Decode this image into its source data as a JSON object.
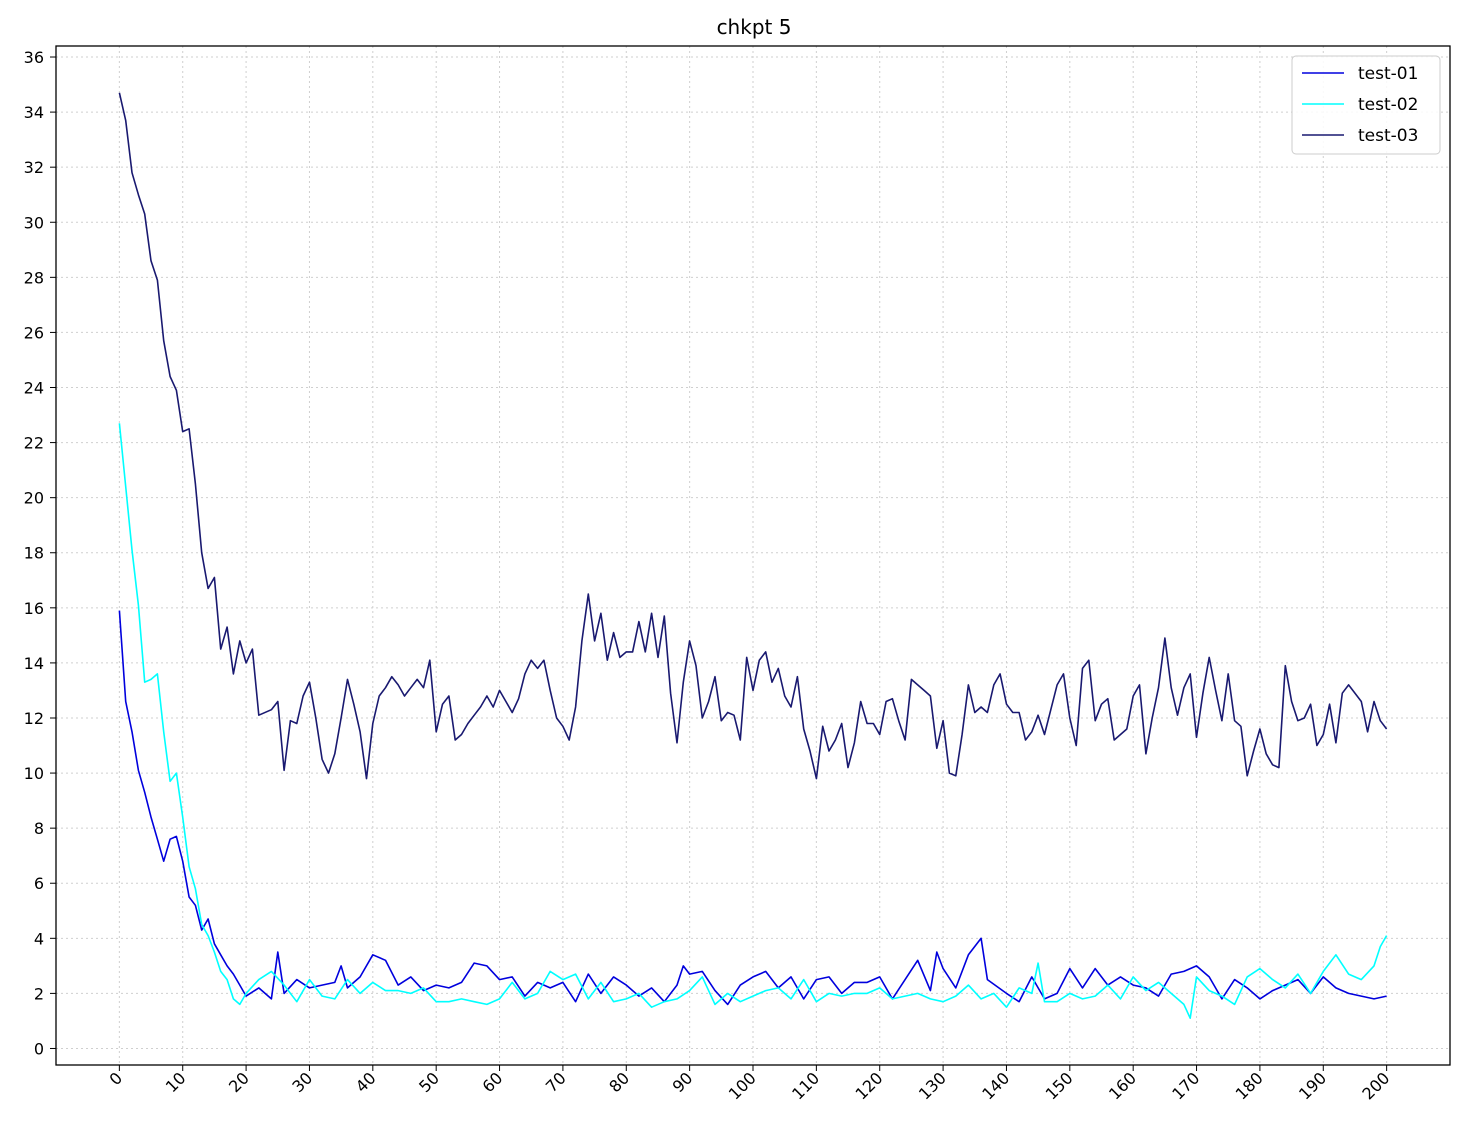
{
  "chart_data": {
    "type": "line",
    "title": "chkpt 5",
    "xlabel": "",
    "ylabel": "",
    "xlim": [
      -10,
      210
    ],
    "ylim": [
      -0.6,
      36.4
    ],
    "xticks": [
      0,
      10,
      20,
      30,
      40,
      50,
      60,
      70,
      80,
      90,
      100,
      110,
      120,
      130,
      140,
      150,
      160,
      170,
      180,
      190,
      200
    ],
    "yticks": [
      0,
      2,
      4,
      6,
      8,
      10,
      12,
      14,
      16,
      18,
      20,
      22,
      24,
      26,
      28,
      30,
      32,
      34,
      36
    ],
    "grid": true,
    "legend_position": "top-right",
    "series": [
      {
        "name": "test-01",
        "color": "#0000dd",
        "x": [
          0,
          1,
          2,
          3,
          4,
          5,
          6,
          7,
          8,
          9,
          10,
          11,
          12,
          13,
          14,
          15,
          16,
          17,
          18,
          19,
          20,
          22,
          24,
          25,
          26,
          28,
          30,
          32,
          34,
          35,
          36,
          38,
          40,
          42,
          44,
          46,
          48,
          50,
          52,
          54,
          56,
          58,
          60,
          62,
          64,
          66,
          68,
          70,
          72,
          74,
          76,
          78,
          80,
          82,
          84,
          86,
          88,
          89,
          90,
          92,
          94,
          96,
          98,
          100,
          102,
          104,
          106,
          108,
          110,
          112,
          114,
          116,
          118,
          120,
          122,
          124,
          126,
          128,
          129,
          130,
          132,
          134,
          136,
          137,
          140,
          142,
          144,
          146,
          148,
          150,
          152,
          154,
          156,
          158,
          160,
          162,
          164,
          166,
          168,
          170,
          172,
          174,
          176,
          178,
          180,
          182,
          184,
          186,
          188,
          190,
          192,
          194,
          196,
          198,
          200
        ],
        "values": [
          15.9,
          12.6,
          11.5,
          10.1,
          9.3,
          8.4,
          7.6,
          6.8,
          7.6,
          7.7,
          6.8,
          5.5,
          5.2,
          4.3,
          4.7,
          3.8,
          3.4,
          3.0,
          2.7,
          2.3,
          1.9,
          2.2,
          1.8,
          3.5,
          2.0,
          2.5,
          2.2,
          2.3,
          2.4,
          3.0,
          2.2,
          2.6,
          3.4,
          3.2,
          2.3,
          2.6,
          2.1,
          2.3,
          2.2,
          2.4,
          3.1,
          3.0,
          2.5,
          2.6,
          1.9,
          2.4,
          2.2,
          2.4,
          1.7,
          2.7,
          2.0,
          2.6,
          2.3,
          1.9,
          2.2,
          1.7,
          2.3,
          3.0,
          2.7,
          2.8,
          2.1,
          1.6,
          2.3,
          2.6,
          2.8,
          2.2,
          2.6,
          1.8,
          2.5,
          2.6,
          2.0,
          2.4,
          2.4,
          2.6,
          1.8,
          2.5,
          3.2,
          2.1,
          3.5,
          2.9,
          2.2,
          3.4,
          4.0,
          2.5,
          2.0,
          1.7,
          2.6,
          1.8,
          2.0,
          2.9,
          2.2,
          2.9,
          2.3,
          2.6,
          2.3,
          2.2,
          1.9,
          2.7,
          2.8,
          3.0,
          2.6,
          1.8,
          2.5,
          2.2,
          1.8,
          2.1,
          2.3,
          2.5,
          2.0,
          2.6,
          2.2,
          2.0,
          1.9,
          1.8,
          1.9
        ]
      },
      {
        "name": "test-02",
        "color": "#00ffff",
        "x": [
          0,
          1,
          2,
          3,
          4,
          5,
          6,
          7,
          8,
          9,
          10,
          11,
          12,
          13,
          14,
          15,
          16,
          17,
          18,
          19,
          20,
          22,
          24,
          26,
          28,
          30,
          32,
          34,
          36,
          38,
          40,
          42,
          44,
          46,
          48,
          50,
          52,
          54,
          56,
          58,
          60,
          62,
          64,
          66,
          68,
          70,
          72,
          74,
          76,
          78,
          80,
          82,
          84,
          86,
          88,
          90,
          92,
          94,
          96,
          98,
          100,
          102,
          104,
          106,
          108,
          110,
          112,
          114,
          116,
          118,
          120,
          122,
          124,
          126,
          128,
          130,
          132,
          134,
          136,
          138,
          140,
          142,
          144,
          145,
          146,
          148,
          150,
          152,
          154,
          156,
          158,
          160,
          162,
          164,
          166,
          168,
          169,
          170,
          172,
          174,
          176,
          178,
          180,
          182,
          184,
          186,
          188,
          190,
          192,
          194,
          196,
          198,
          199,
          200
        ],
        "values": [
          22.7,
          20.4,
          18.1,
          16.1,
          13.3,
          13.4,
          13.6,
          11.5,
          9.7,
          10.0,
          8.4,
          6.6,
          5.8,
          4.5,
          4.1,
          3.5,
          2.8,
          2.5,
          1.8,
          1.6,
          2.0,
          2.5,
          2.8,
          2.3,
          1.7,
          2.5,
          1.9,
          1.8,
          2.5,
          2.0,
          2.4,
          2.1,
          2.1,
          2.0,
          2.2,
          1.7,
          1.7,
          1.8,
          1.7,
          1.6,
          1.8,
          2.4,
          1.8,
          2.0,
          2.8,
          2.5,
          2.7,
          1.8,
          2.4,
          1.7,
          1.8,
          2.0,
          1.5,
          1.7,
          1.8,
          2.1,
          2.6,
          1.6,
          2.0,
          1.7,
          1.9,
          2.1,
          2.2,
          1.8,
          2.5,
          1.7,
          2.0,
          1.9,
          2.0,
          2.0,
          2.2,
          1.8,
          1.9,
          2.0,
          1.8,
          1.7,
          1.9,
          2.3,
          1.8,
          2.0,
          1.5,
          2.2,
          2.0,
          3.1,
          1.7,
          1.7,
          2.0,
          1.8,
          1.9,
          2.3,
          1.8,
          2.6,
          2.1,
          2.4,
          2.0,
          1.6,
          1.1,
          2.6,
          2.1,
          1.9,
          1.6,
          2.6,
          2.9,
          2.5,
          2.2,
          2.7,
          2.0,
          2.8,
          3.4,
          2.7,
          2.5,
          3.0,
          3.7,
          4.1
        ]
      },
      {
        "name": "test-03",
        "color": "#191970",
        "x": [
          0,
          1,
          2,
          3,
          4,
          5,
          6,
          7,
          8,
          9,
          10,
          11,
          12,
          13,
          14,
          15,
          16,
          17,
          18,
          19,
          20,
          21,
          22,
          24,
          25,
          26,
          27,
          28,
          29,
          30,
          31,
          32,
          33,
          34,
          35,
          36,
          37,
          38,
          39,
          40,
          41,
          42,
          43,
          44,
          45,
          46,
          47,
          48,
          49,
          50,
          51,
          52,
          53,
          54,
          55,
          56,
          57,
          58,
          59,
          60,
          61,
          62,
          63,
          64,
          65,
          66,
          67,
          68,
          69,
          70,
          71,
          72,
          73,
          74,
          75,
          76,
          77,
          78,
          79,
          80,
          81,
          82,
          83,
          84,
          85,
          86,
          87,
          88,
          89,
          90,
          91,
          92,
          93,
          94,
          95,
          96,
          97,
          98,
          99,
          100,
          101,
          102,
          103,
          104,
          105,
          106,
          107,
          108,
          109,
          110,
          111,
          112,
          113,
          114,
          115,
          116,
          117,
          118,
          119,
          120,
          121,
          122,
          123,
          124,
          125,
          126,
          127,
          128,
          129,
          130,
          131,
          132,
          133,
          134,
          135,
          136,
          137,
          138,
          139,
          140,
          141,
          142,
          143,
          144,
          145,
          146,
          147,
          148,
          149,
          150,
          151,
          152,
          153,
          154,
          155,
          156,
          157,
          158,
          159,
          160,
          161,
          162,
          163,
          164,
          165,
          166,
          167,
          168,
          169,
          170,
          171,
          172,
          173,
          174,
          175,
          176,
          177,
          178,
          179,
          180,
          181,
          182,
          183,
          184,
          185,
          186,
          187,
          188,
          189,
          190,
          191,
          192,
          193,
          194,
          195,
          196,
          197,
          198,
          199,
          200
        ],
        "values": [
          34.7,
          33.7,
          31.8,
          31.0,
          30.3,
          28.6,
          27.9,
          25.7,
          24.4,
          23.9,
          22.4,
          22.5,
          20.5,
          18.0,
          16.7,
          17.1,
          14.5,
          15.3,
          13.6,
          14.8,
          14.0,
          14.5,
          12.1,
          12.3,
          12.6,
          10.1,
          11.9,
          11.8,
          12.8,
          13.3,
          12.0,
          10.5,
          10.0,
          10.7,
          12.0,
          13.4,
          12.5,
          11.5,
          9.8,
          11.8,
          12.8,
          13.1,
          13.5,
          13.2,
          12.8,
          13.1,
          13.4,
          13.1,
          14.1,
          11.5,
          12.5,
          12.8,
          11.2,
          11.4,
          11.8,
          12.1,
          12.4,
          12.8,
          12.4,
          13.0,
          12.6,
          12.2,
          12.7,
          13.6,
          14.1,
          13.8,
          14.1,
          13.0,
          12.0,
          11.7,
          11.2,
          12.4,
          14.8,
          16.5,
          14.8,
          15.8,
          14.1,
          15.1,
          14.2,
          14.4,
          14.4,
          15.5,
          14.4,
          15.8,
          14.2,
          15.7,
          12.9,
          11.1,
          13.3,
          14.8,
          13.9,
          12.0,
          12.6,
          13.5,
          11.9,
          12.2,
          12.1,
          11.2,
          14.2,
          13.0,
          14.1,
          14.4,
          13.3,
          13.8,
          12.8,
          12.4,
          13.5,
          11.6,
          10.8,
          9.8,
          11.7,
          10.8,
          11.2,
          11.8,
          10.2,
          11.1,
          12.6,
          11.8,
          11.8,
          11.4,
          12.6,
          12.7,
          11.9,
          11.2,
          13.4,
          13.2,
          13.0,
          12.8,
          10.9,
          11.9,
          10.0,
          9.9,
          11.4,
          13.2,
          12.2,
          12.4,
          12.2,
          13.2,
          13.6,
          12.5,
          12.2,
          12.2,
          11.2,
          11.5,
          12.1,
          11.4,
          12.3,
          13.2,
          13.6,
          12.0,
          11.0,
          13.8,
          14.1,
          11.9,
          12.5,
          12.7,
          11.2,
          11.4,
          11.6,
          12.8,
          13.2,
          10.7,
          12.0,
          13.1,
          14.9,
          13.1,
          12.1,
          13.1,
          13.6,
          11.3,
          12.9,
          14.2,
          13.0,
          11.9,
          13.6,
          11.9,
          11.7,
          9.9,
          10.8,
          11.6,
          10.7,
          10.3,
          10.2,
          13.9,
          12.6,
          11.9,
          12.0,
          12.5,
          11.0,
          11.4,
          12.5,
          11.1,
          12.9,
          13.2,
          12.9,
          12.6,
          11.5,
          12.6,
          11.9,
          11.6
        ]
      }
    ]
  }
}
